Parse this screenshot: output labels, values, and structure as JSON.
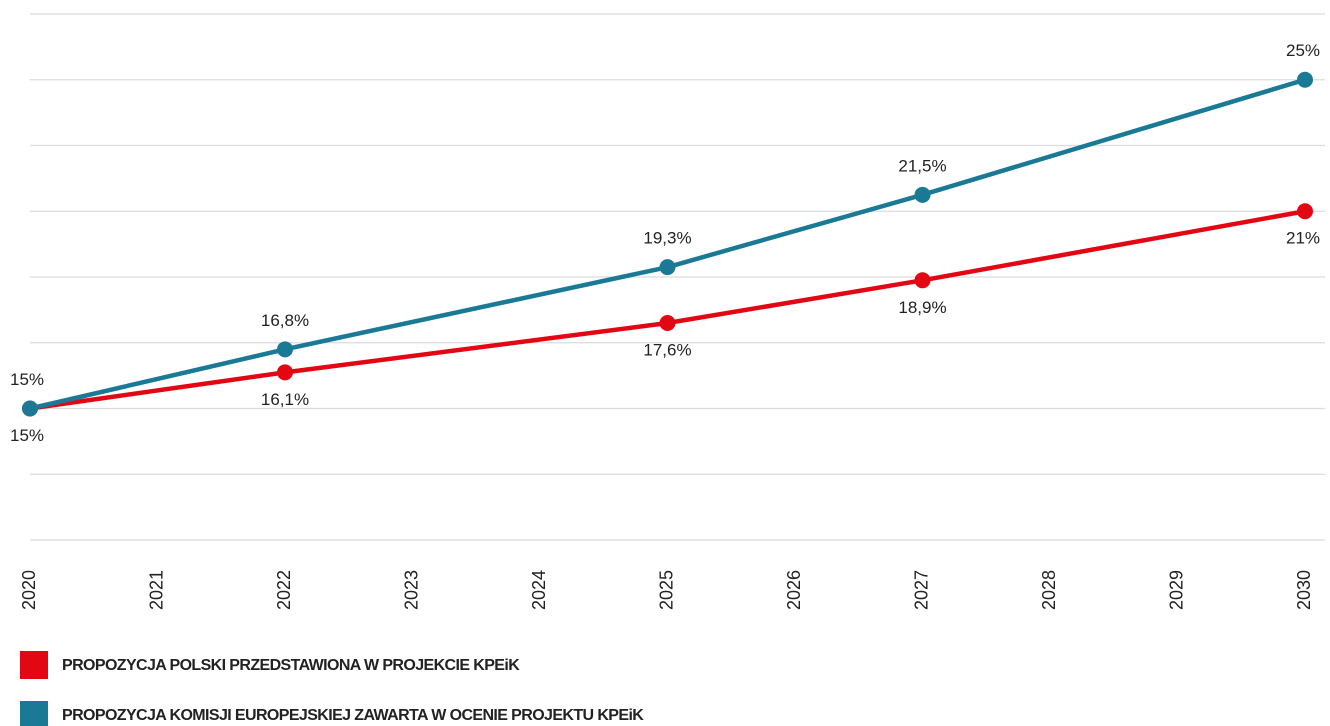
{
  "chart_data": {
    "type": "line",
    "x": [
      2020,
      2022,
      2025,
      2027,
      2030
    ],
    "series": [
      {
        "name": "PROPOZYCJA POLSKI PRZEDSTAWIONA W PROJEKCIE KPEiK",
        "color": "#e30613",
        "values": [
          15,
          16.1,
          17.6,
          18.9,
          21
        ],
        "value_labels": [
          "15%",
          "16,1%",
          "17,6%",
          "18,9%",
          "21%"
        ],
        "label_position": "below"
      },
      {
        "name": "PROPOZYCJA KOMISJI EUROPEJSKIEJ ZAWARTA W OCENIE PROJEKTU KPEiK",
        "color": "#1a7a96",
        "values": [
          15,
          16.8,
          19.3,
          21.5,
          25
        ],
        "value_labels": [
          "15%",
          "16,8%",
          "19,3%",
          "21,5%",
          "25%"
        ],
        "label_position": "above"
      }
    ],
    "xlim": [
      2020,
      2030
    ],
    "xticks": [
      2020,
      2021,
      2022,
      2023,
      2024,
      2025,
      2026,
      2027,
      2028,
      2029,
      2030
    ],
    "ylim": [
      11,
      27
    ],
    "yticks": [
      11,
      13,
      15,
      17,
      19,
      21,
      23,
      25,
      27
    ],
    "grid": true
  }
}
